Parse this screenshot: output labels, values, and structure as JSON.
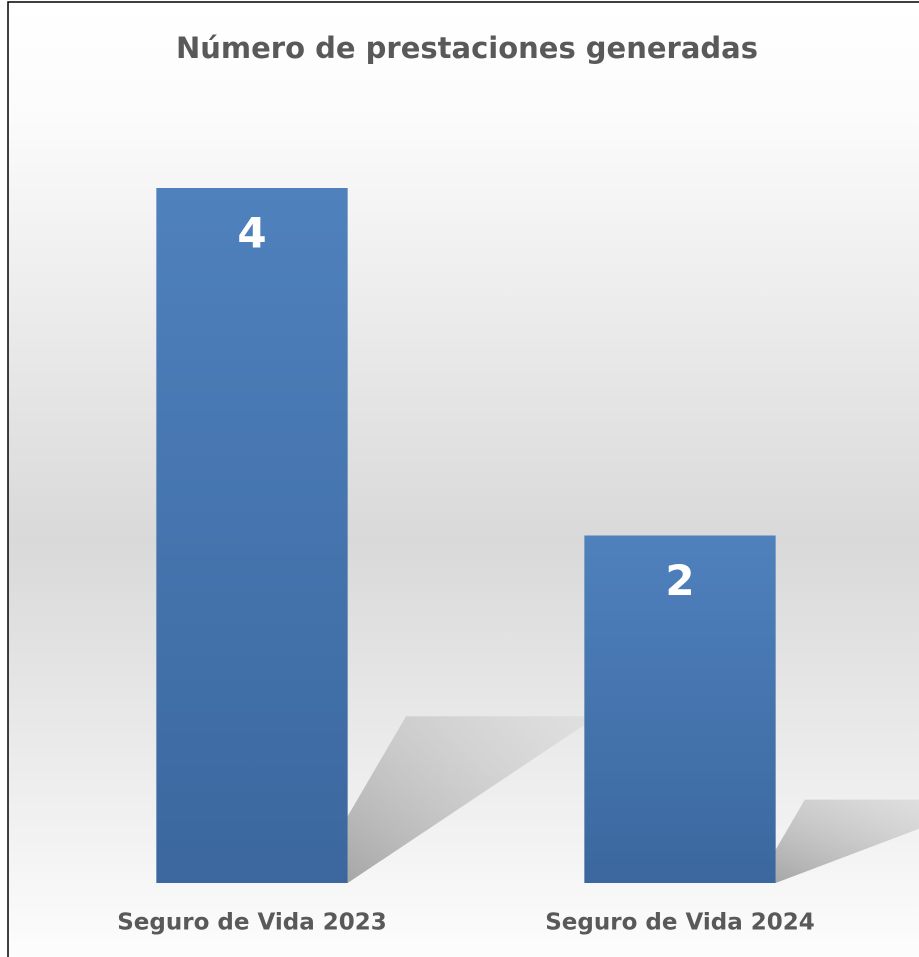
{
  "chart_data": {
    "type": "bar",
    "title": "Número de prestaciones generadas",
    "categories": [
      "Seguro de Vida 2023",
      "Seguro de Vida 2024"
    ],
    "values": [
      4,
      2
    ],
    "color": "#4a7ebb",
    "ylim": [
      0,
      4
    ]
  }
}
